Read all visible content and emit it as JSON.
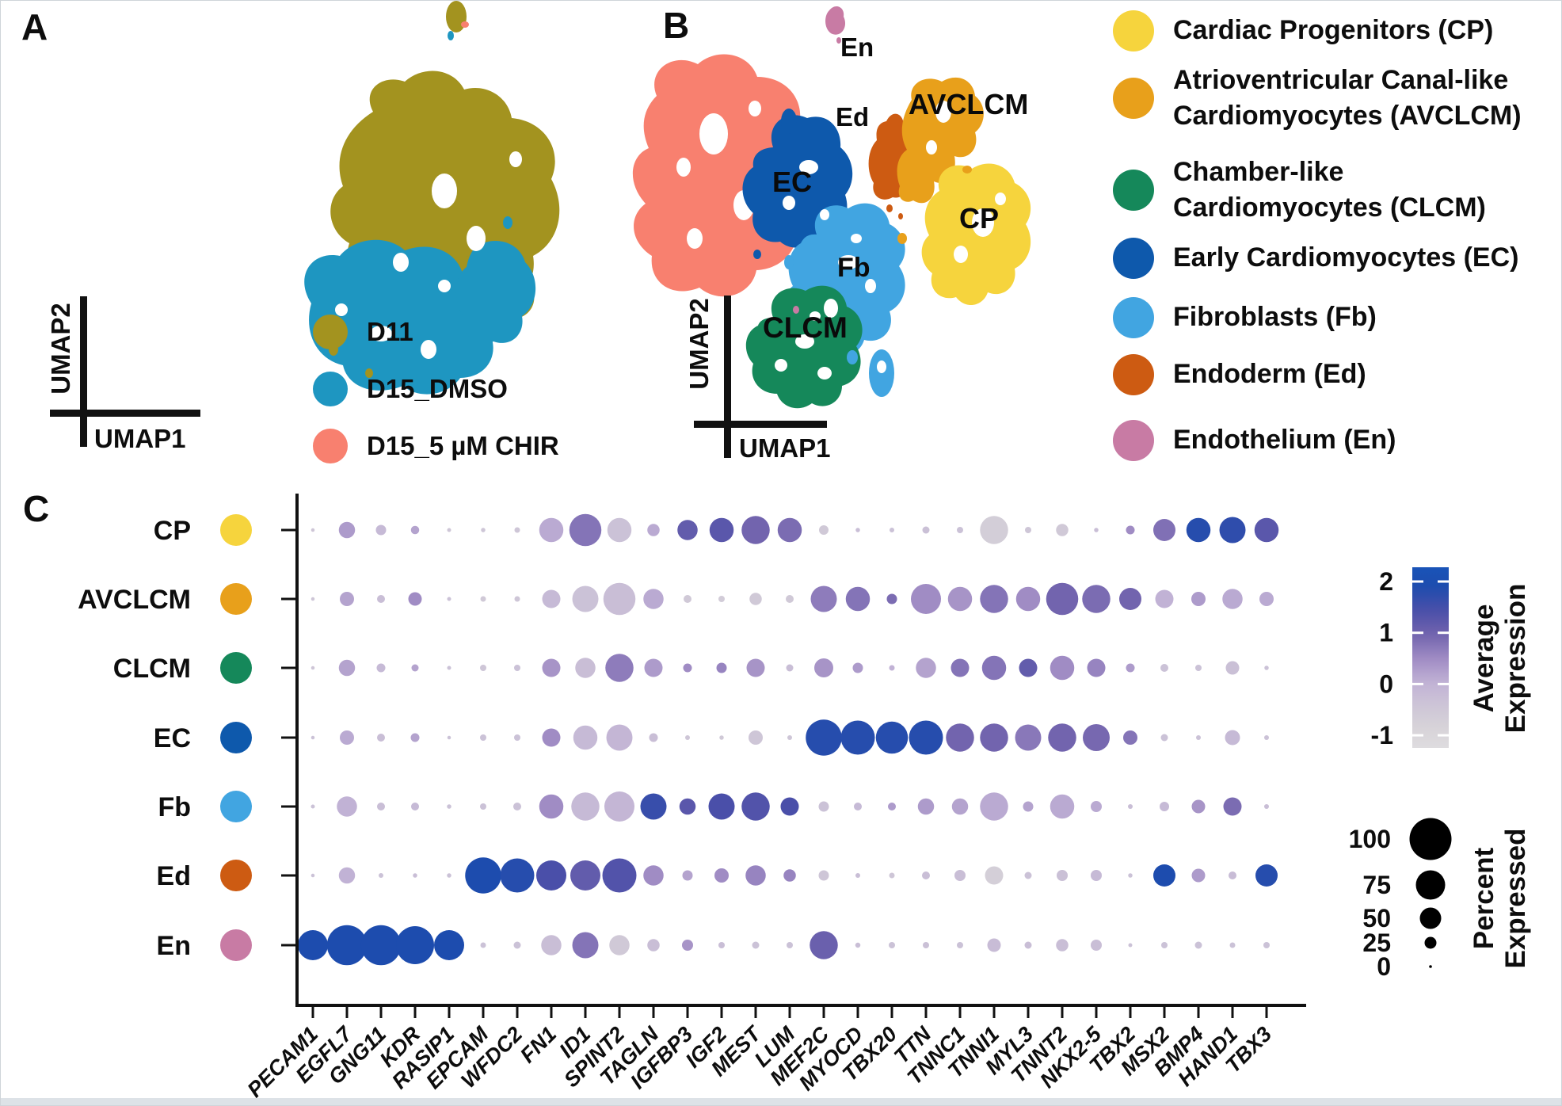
{
  "panel_a": {
    "label": "A",
    "x_axis_label": "UMAP1",
    "y_axis_label": "UMAP2",
    "legend": [
      {
        "label": "D11",
        "color": "#a3931f"
      },
      {
        "label": "D15_DMSO",
        "color": "#1e96c1"
      },
      {
        "label": "D15_5 µM CHIR",
        "color": "#f8806f"
      }
    ]
  },
  "panel_b": {
    "label": "B",
    "x_axis_label": "UMAP1",
    "y_axis_label": "UMAP2",
    "cluster_annotations": [
      "En",
      "Ed",
      "AVCLCM",
      "CP",
      "EC",
      "Fb",
      "CLCM"
    ],
    "legend": [
      {
        "abbr": "CP",
        "label": "Cardiac Progenitors (CP)",
        "lines": [
          "Cardiac Progenitors (CP)"
        ],
        "color": "#f6d43d"
      },
      {
        "abbr": "AVCLCM",
        "label": "Atrioventricular Canal-like Cardiomyocytes (AVCLCM)",
        "lines": [
          "Atrioventricular Canal-like",
          "Cardiomyocytes (AVCLCM)"
        ],
        "color": "#e8a01b"
      },
      {
        "abbr": "CLCM",
        "label": "Chamber-like Cardiomyocytes (CLCM)",
        "lines": [
          "Chamber-like",
          "Cardiomyocytes (CLCM)"
        ],
        "color": "#15885a"
      },
      {
        "abbr": "EC",
        "label": "Early Cardiomyocytes (EC)",
        "lines": [
          "Early Cardiomyocytes (EC)"
        ],
        "color": "#0e59ac"
      },
      {
        "abbr": "Fb",
        "label": "Fibroblasts (Fb)",
        "lines": [
          "Fibroblasts (Fb)"
        ],
        "color": "#41a5e1"
      },
      {
        "abbr": "Ed",
        "label": "Endoderm (Ed)",
        "lines": [
          "Endoderm (Ed)"
        ],
        "color": "#cd5b12"
      },
      {
        "abbr": "En",
        "label": "Endothelium (En)",
        "lines": [
          "Endothelium (En)"
        ],
        "color": "#c87ba4"
      }
    ]
  },
  "panel_c": {
    "label": "C"
  },
  "chart_data": [
    {
      "type": "scatter",
      "title": "Panel A UMAP colored by sample",
      "xlabel": "UMAP1",
      "ylabel": "UMAP2",
      "legend_position": "right",
      "series": [
        {
          "name": "D11",
          "color": "#a3931f"
        },
        {
          "name": "D15_DMSO",
          "color": "#1e96c1"
        },
        {
          "name": "D15_5 µM CHIR",
          "color": "#f8806f"
        }
      ]
    },
    {
      "type": "scatter",
      "title": "Panel B UMAP colored by cell type",
      "xlabel": "UMAP1",
      "ylabel": "UMAP2",
      "legend_position": "right",
      "series": [
        {
          "name": "Cardiac Progenitors (CP)",
          "color": "#f6d43d"
        },
        {
          "name": "Atrioventricular Canal-like Cardiomyocytes (AVCLCM)",
          "color": "#e8a01b"
        },
        {
          "name": "Chamber-like Cardiomyocytes (CLCM)",
          "color": "#15885a"
        },
        {
          "name": "Early Cardiomyocytes (EC)",
          "color": "#0e59ac"
        },
        {
          "name": "Fibroblasts (Fb)",
          "color": "#41a5e1"
        },
        {
          "name": "Endoderm (Ed)",
          "color": "#cd5b12"
        },
        {
          "name": "Endothelium (En)",
          "color": "#c87ba4"
        }
      ]
    },
    {
      "type": "heatmap",
      "title": "Panel C marker-gene dot plot (dot size = percent expressed, dot color = average expression)",
      "rows": [
        "CP",
        "AVCLCM",
        "CLCM",
        "EC",
        "Fb",
        "Ed",
        "En"
      ],
      "row_colors": [
        "#f6d43d",
        "#e8a01b",
        "#15885a",
        "#0e59ac",
        "#41a5e1",
        "#cd5b12",
        "#c87ba4"
      ],
      "genes": [
        "PECAM1",
        "EGFL7",
        "GNG11",
        "KDR",
        "RASIP1",
        "EPCAM",
        "WFDC2",
        "FN1",
        "ID1",
        "SPINT2",
        "TAGLN",
        "IGFBP3",
        "IGF2",
        "MEST",
        "LUM",
        "MEF2C",
        "MYOCD",
        "TBX20",
        "TTN",
        "TNNC1",
        "TNNI1",
        "MYL3",
        "TNNT2",
        "NKX2-5",
        "TBX2",
        "MSX2",
        "BMP4",
        "HAND1",
        "TBX3"
      ],
      "percent_expressed": [
        [
          3,
          35,
          20,
          15,
          4,
          5,
          8,
          55,
          75,
          55,
          25,
          45,
          55,
          65,
          55,
          18,
          5,
          6,
          12,
          10,
          65,
          10,
          25,
          5,
          16,
          50,
          55,
          60,
          55
        ],
        [
          3,
          30,
          14,
          28,
          4,
          8,
          8,
          40,
          60,
          75,
          45,
          14,
          10,
          25,
          14,
          60,
          55,
          20,
          70,
          55,
          65,
          55,
          75,
          65,
          50,
          40,
          30,
          45,
          30
        ],
        [
          3,
          35,
          16,
          12,
          4,
          10,
          10,
          40,
          45,
          65,
          40,
          16,
          20,
          40,
          12,
          42,
          20,
          8,
          45,
          40,
          55,
          40,
          55,
          40,
          16,
          14,
          10,
          28,
          5
        ],
        [
          3,
          30,
          14,
          16,
          3,
          10,
          10,
          40,
          55,
          60,
          16,
          6,
          5,
          30,
          6,
          85,
          80,
          75,
          80,
          65,
          65,
          60,
          65,
          62,
          30,
          12,
          6,
          32,
          6
        ],
        [
          4,
          45,
          14,
          14,
          5,
          10,
          14,
          55,
          65,
          70,
          60,
          35,
          60,
          65,
          40,
          20,
          14,
          14,
          35,
          35,
          65,
          20,
          55,
          22,
          6,
          18,
          28,
          40,
          6
        ],
        [
          3,
          35,
          6,
          5,
          5,
          85,
          80,
          70,
          70,
          80,
          45,
          20,
          30,
          45,
          25,
          20,
          6,
          8,
          14,
          22,
          40,
          12,
          22,
          22,
          5,
          50,
          28,
          14,
          50
        ],
        [
          70,
          95,
          95,
          90,
          70,
          8,
          12,
          45,
          60,
          45,
          25,
          22,
          10,
          12,
          10,
          65,
          7,
          10,
          10,
          10,
          28,
          12,
          25,
          22,
          4,
          10,
          12,
          8,
          10
        ]
      ],
      "average_expression": [
        [
          -0.5,
          0.3,
          -0.2,
          0.2,
          -0.5,
          -0.5,
          -0.5,
          0.1,
          0.8,
          -0.4,
          0.1,
          1.2,
          1.3,
          1.0,
          0.9,
          -0.6,
          -0.3,
          -0.4,
          -0.35,
          -0.4,
          -0.75,
          -0.5,
          -0.6,
          -0.3,
          0.5,
          0.85,
          1.9,
          1.8,
          1.3
        ],
        [
          -0.5,
          0.2,
          -0.3,
          0.5,
          -0.4,
          -0.6,
          -0.5,
          -0.2,
          -0.4,
          -0.3,
          0.1,
          -0.6,
          -0.7,
          -0.6,
          -0.6,
          0.7,
          0.8,
          0.9,
          0.5,
          0.4,
          0.8,
          0.5,
          1.0,
          0.9,
          1.0,
          0.0,
          0.3,
          0.1,
          0.1
        ],
        [
          -0.5,
          0.2,
          -0.2,
          0.2,
          -0.4,
          -0.5,
          -0.4,
          0.4,
          -0.3,
          0.7,
          0.3,
          0.5,
          0.6,
          0.4,
          -0.3,
          0.4,
          0.3,
          0.0,
          0.2,
          0.8,
          0.8,
          1.2,
          0.5,
          0.6,
          0.3,
          -0.4,
          -0.4,
          -0.35,
          -0.4
        ],
        [
          -0.4,
          0.1,
          -0.3,
          0.2,
          -0.4,
          -0.4,
          -0.4,
          0.5,
          -0.2,
          -0.1,
          -0.3,
          -0.5,
          -0.6,
          -0.5,
          -0.5,
          1.9,
          1.9,
          1.9,
          1.9,
          1.0,
          1.0,
          0.75,
          1.0,
          0.95,
          0.8,
          -0.4,
          -0.4,
          -0.2,
          -0.4
        ],
        [
          -0.4,
          0.0,
          -0.3,
          -0.2,
          -0.4,
          -0.4,
          -0.4,
          0.5,
          -0.2,
          -0.1,
          1.7,
          1.3,
          1.5,
          1.4,
          1.5,
          -0.4,
          -0.2,
          0.3,
          0.3,
          0.2,
          0.1,
          0.2,
          0.1,
          0.1,
          -0.3,
          -0.2,
          0.4,
          0.9,
          -0.3
        ],
        [
          -0.4,
          0.0,
          -0.4,
          -0.3,
          -0.4,
          2.0,
          1.9,
          1.5,
          1.2,
          1.4,
          0.5,
          0.2,
          0.5,
          0.6,
          0.6,
          -0.5,
          -0.3,
          -0.5,
          -0.3,
          -0.3,
          -0.8,
          -0.4,
          -0.35,
          -0.2,
          -0.4,
          2.0,
          0.3,
          -0.25,
          1.9
        ],
        [
          2.0,
          2.0,
          2.0,
          2.0,
          2.0,
          -0.4,
          -0.4,
          -0.3,
          0.8,
          -0.6,
          -0.3,
          0.4,
          -0.3,
          -0.4,
          -0.4,
          1.1,
          -0.3,
          -0.4,
          -0.35,
          -0.4,
          -0.25,
          -0.3,
          -0.3,
          -0.3,
          -0.4,
          -0.4,
          -0.4,
          -0.4,
          -0.4
        ]
      ],
      "color_legend": {
        "title": "Average Expression",
        "ticks": [
          "2",
          "1",
          "0",
          "-1"
        ],
        "range": [
          -1,
          2
        ]
      },
      "size_legend": {
        "title": "Percent Expressed",
        "ticks": [
          "100",
          "75",
          "50",
          "25",
          "0"
        ]
      },
      "grid": false,
      "xlabel": "",
      "ylabel": ""
    }
  ]
}
